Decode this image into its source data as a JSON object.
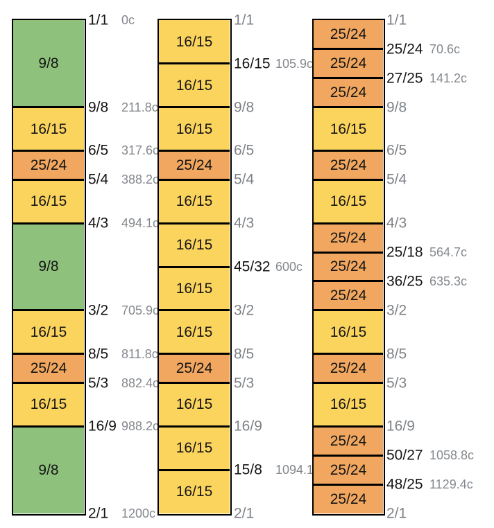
{
  "colors": {
    "background": "#ffffff",
    "outline": "#000000",
    "ratio_label": "#151515",
    "muted_label": "#7e8287",
    "cents_label": "#84888d",
    "steps": {
      "9/8": "#8ec27c",
      "16/15": "#fbd45e",
      "25/24": "#f1a75f"
    }
  },
  "chart_data": {
    "type": "bar",
    "subtype": "stacked-interval-columns",
    "unit": "cents",
    "ylim": [
      0,
      1200
    ],
    "columns": [
      {
        "steps": [
          "9/8",
          "16/15",
          "25/24",
          "16/15",
          "9/8",
          "16/15",
          "25/24",
          "16/15",
          "9/8"
        ],
        "boundaries": [
          {
            "ratio": "1/1",
            "cents": 0,
            "cents_label": "0c",
            "muted": false
          },
          {
            "ratio": "9/8",
            "cents": 211.8,
            "cents_label": "211.8c",
            "muted": false
          },
          {
            "ratio": "6/5",
            "cents": 317.6,
            "cents_label": "317.6c",
            "muted": false
          },
          {
            "ratio": "5/4",
            "cents": 388.2,
            "cents_label": "388.2c",
            "muted": false
          },
          {
            "ratio": "4/3",
            "cents": 494.1,
            "cents_label": "494.1c",
            "muted": false
          },
          {
            "ratio": "3/2",
            "cents": 705.9,
            "cents_label": "705.9c",
            "muted": false
          },
          {
            "ratio": "8/5",
            "cents": 811.8,
            "cents_label": "811.8c",
            "muted": false
          },
          {
            "ratio": "5/3",
            "cents": 882.4,
            "cents_label": "882.4c",
            "muted": false
          },
          {
            "ratio": "16/9",
            "cents": 988.2,
            "cents_label": "988.2c",
            "muted": false
          },
          {
            "ratio": "2/1",
            "cents": 1200,
            "cents_label": "1200c",
            "muted": false
          }
        ]
      },
      {
        "steps": [
          "16/15",
          "16/15",
          "16/15",
          "25/24",
          "16/15",
          "16/15",
          "16/15",
          "16/15",
          "25/24",
          "16/15",
          "16/15",
          "16/15"
        ],
        "boundaries": [
          {
            "ratio": "1/1",
            "cents": 0,
            "cents_label": null,
            "muted": true
          },
          {
            "ratio": "16/15",
            "cents": 105.9,
            "cents_label": "105.9c",
            "muted": false
          },
          {
            "ratio": "9/8",
            "cents": 211.8,
            "cents_label": null,
            "muted": true
          },
          {
            "ratio": "6/5",
            "cents": 317.6,
            "cents_label": null,
            "muted": true
          },
          {
            "ratio": "5/4",
            "cents": 388.2,
            "cents_label": null,
            "muted": true
          },
          {
            "ratio": "4/3",
            "cents": 494.1,
            "cents_label": null,
            "muted": true
          },
          {
            "ratio": "45/32",
            "cents": 600,
            "cents_label": "600c",
            "muted": false
          },
          {
            "ratio": "3/2",
            "cents": 705.9,
            "cents_label": null,
            "muted": true
          },
          {
            "ratio": "8/5",
            "cents": 811.8,
            "cents_label": null,
            "muted": true
          },
          {
            "ratio": "5/3",
            "cents": 882.4,
            "cents_label": null,
            "muted": true
          },
          {
            "ratio": "16/9",
            "cents": 988.2,
            "cents_label": null,
            "muted": true
          },
          {
            "ratio": "15/8",
            "cents": 1094.1,
            "cents_label": "1094.1c",
            "muted": false
          },
          {
            "ratio": "2/1",
            "cents": 1200,
            "cents_label": null,
            "muted": true
          }
        ]
      },
      {
        "steps": [
          "25/24",
          "25/24",
          "25/24",
          "16/15",
          "25/24",
          "16/15",
          "25/24",
          "25/24",
          "25/24",
          "16/15",
          "25/24",
          "16/15",
          "25/24",
          "25/24",
          "25/24"
        ],
        "boundaries": [
          {
            "ratio": "1/1",
            "cents": 0,
            "cents_label": null,
            "muted": true
          },
          {
            "ratio": "25/24",
            "cents": 70.6,
            "cents_label": "70.6c",
            "muted": false
          },
          {
            "ratio": "27/25",
            "cents": 141.2,
            "cents_label": "141.2c",
            "muted": false
          },
          {
            "ratio": "9/8",
            "cents": 211.8,
            "cents_label": null,
            "muted": true
          },
          {
            "ratio": "6/5",
            "cents": 317.6,
            "cents_label": null,
            "muted": true
          },
          {
            "ratio": "5/4",
            "cents": 388.2,
            "cents_label": null,
            "muted": true
          },
          {
            "ratio": "4/3",
            "cents": 494.1,
            "cents_label": null,
            "muted": true
          },
          {
            "ratio": "25/18",
            "cents": 564.7,
            "cents_label": "564.7c",
            "muted": false
          },
          {
            "ratio": "36/25",
            "cents": 635.3,
            "cents_label": "635.3c",
            "muted": false
          },
          {
            "ratio": "3/2",
            "cents": 705.9,
            "cents_label": null,
            "muted": true
          },
          {
            "ratio": "8/5",
            "cents": 811.8,
            "cents_label": null,
            "muted": true
          },
          {
            "ratio": "5/3",
            "cents": 882.4,
            "cents_label": null,
            "muted": true
          },
          {
            "ratio": "16/9",
            "cents": 988.2,
            "cents_label": null,
            "muted": true
          },
          {
            "ratio": "50/27",
            "cents": 1058.8,
            "cents_label": "1058.8c",
            "muted": false
          },
          {
            "ratio": "48/25",
            "cents": 1129.4,
            "cents_label": "1129.4c",
            "muted": false
          },
          {
            "ratio": "2/1",
            "cents": 1200,
            "cents_label": null,
            "muted": true
          }
        ]
      }
    ]
  }
}
